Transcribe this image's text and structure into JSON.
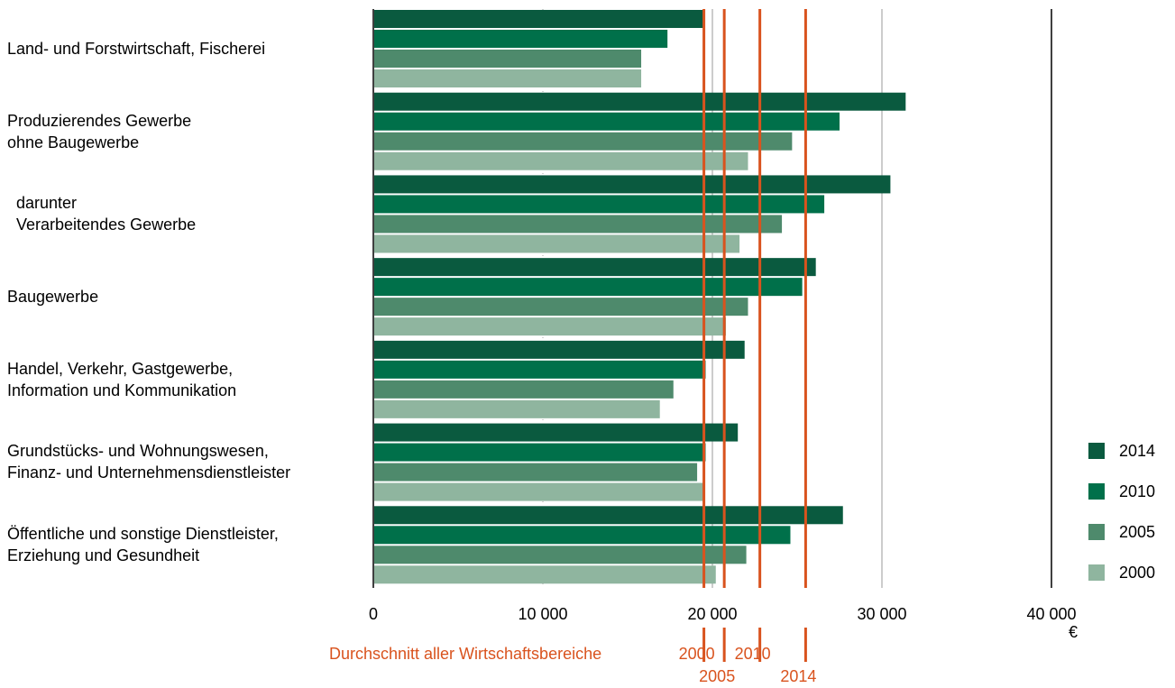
{
  "chart_data": {
    "type": "bar",
    "orientation": "horizontal",
    "categories": [
      "Land- und Forstwirtschaft, Fischerei",
      "Produzierendes Gewerbe\nohne Baugewerbe",
      "  darunter\n  Verarbeitendes Gewerbe",
      "Baugewerbe",
      "Handel, Verkehr, Gastgewerbe,\nInformation und Kommunikation",
      "Grundstücks- und Wohnungswesen,\nFinanz- und Unternehmensdienstleister",
      "Öffentliche und sonstige Dienstleister,\nErziehung und Gesundheit"
    ],
    "series": [
      {
        "name": "2014",
        "color": "#0a5a3f",
        "values": [
          19500,
          31400,
          30500,
          26100,
          21900,
          21500,
          27700
        ]
      },
      {
        "name": "2010",
        "color": "#00704a",
        "values": [
          17350,
          27500,
          26600,
          25300,
          19600,
          19600,
          24600
        ]
      },
      {
        "name": "2005",
        "color": "#4e8a6c",
        "values": [
          15800,
          24700,
          24100,
          22100,
          17700,
          19100,
          22000
        ]
      },
      {
        "name": "2000",
        "color": "#8fb59f",
        "values": [
          15800,
          22100,
          21600,
          20800,
          16900,
          19500,
          20200
        ]
      }
    ],
    "averages": [
      {
        "year": "2000",
        "value": 19500
      },
      {
        "year": "2005",
        "value": 20700
      },
      {
        "year": "2010",
        "value": 22800
      },
      {
        "year": "2014",
        "value": 25500
      }
    ],
    "average_caption": "Durchschnitt aller Wirtschaftsbereiche",
    "average_color": "#d9531e",
    "xlim": [
      0,
      40000
    ],
    "xticks": [
      0,
      10000,
      20000,
      30000,
      40000
    ],
    "xtick_labels": [
      "0",
      "10 000",
      "20 000",
      "30 000",
      "40 000"
    ],
    "unit": "€",
    "grid": true,
    "legend_position": "bottom-right"
  }
}
